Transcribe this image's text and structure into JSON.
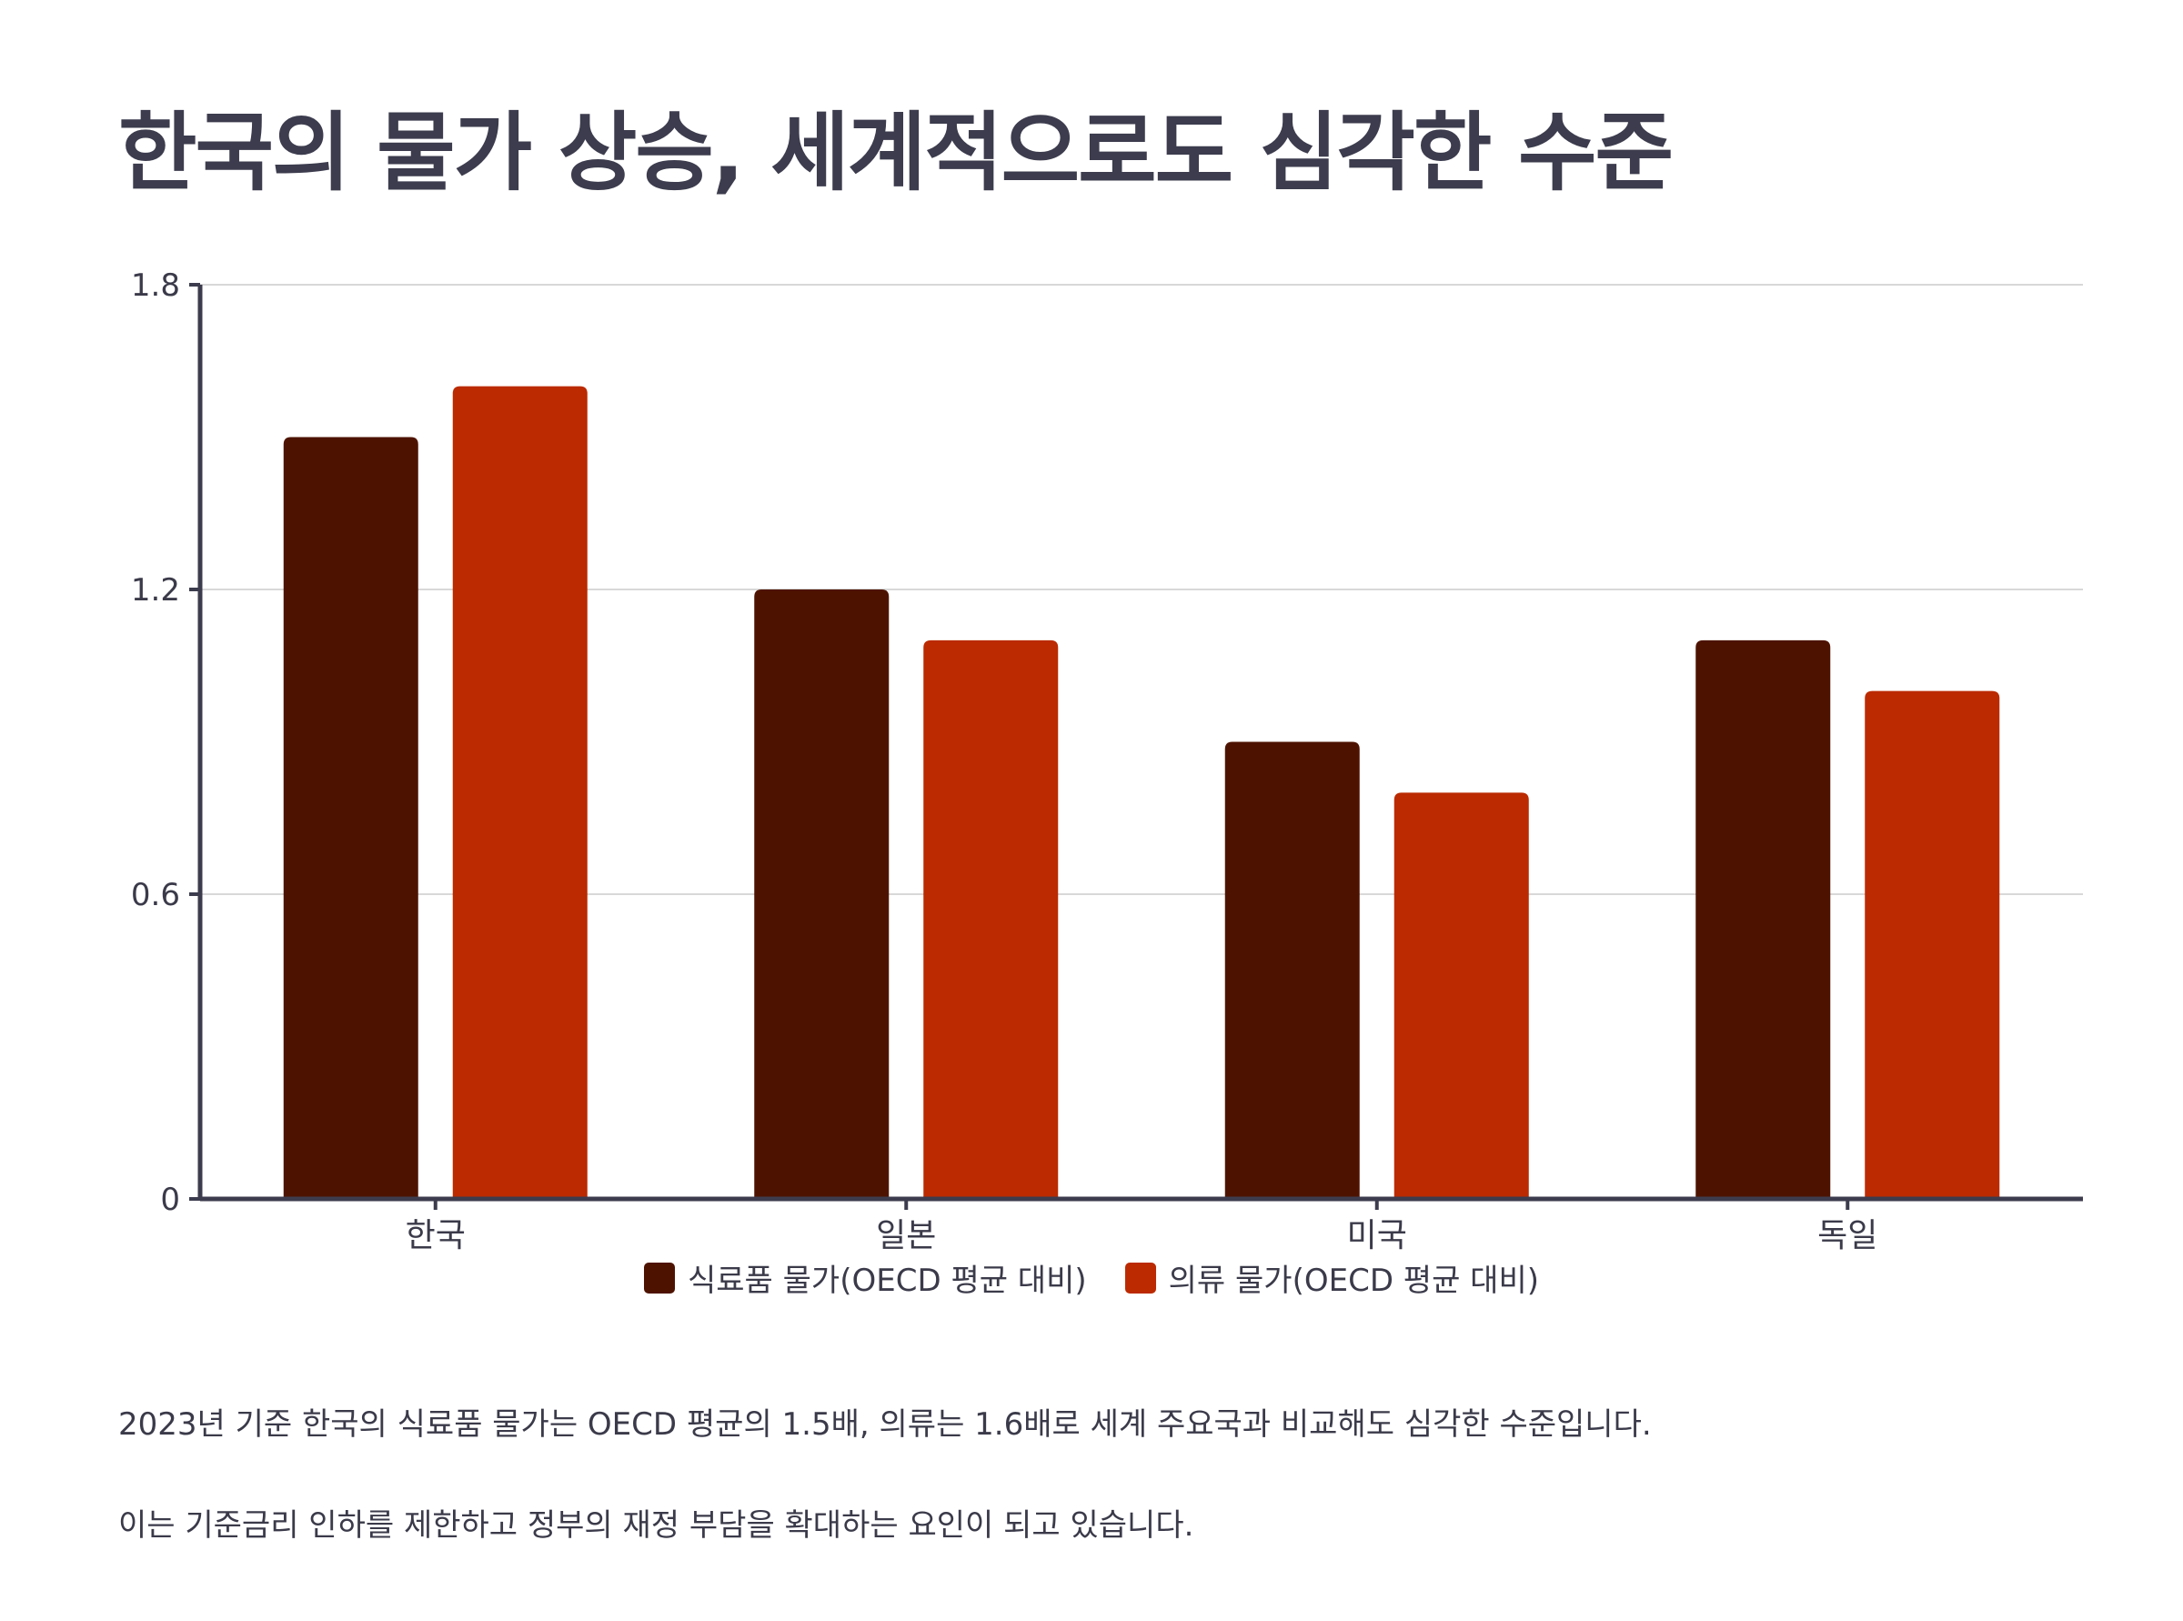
{
  "title": "한국의 물가 상승, 세계적으로도 심각한 수준",
  "chart_data": {
    "type": "bar",
    "categories": [
      "한국",
      "일본",
      "미국",
      "독일"
    ],
    "series": [
      {
        "name": "식료품 물가(OECD 평균 대비)",
        "color": "#4e1300",
        "values": [
          1.5,
          1.2,
          0.9,
          1.1
        ]
      },
      {
        "name": "의류 물가(OECD 평균 대비)",
        "color": "#bb2a00",
        "values": [
          1.6,
          1.1,
          0.8,
          1.0
        ]
      }
    ],
    "yticks": [
      "0",
      "0.6",
      "1.2",
      "1.8"
    ],
    "ylim": [
      0,
      1.8
    ],
    "grid": true,
    "legend_position": "bottom"
  },
  "notes": [
    "2023년 기준 한국의 식료품 물가는 OECD 평균의 1.5배, 의류는 1.6배로 세계 주요국과 비교해도 심각한 수준입니다.",
    "이는 기준금리 인하를 제한하고 정부의 재정 부담을 확대하는 요인이 되고 있습니다."
  ]
}
